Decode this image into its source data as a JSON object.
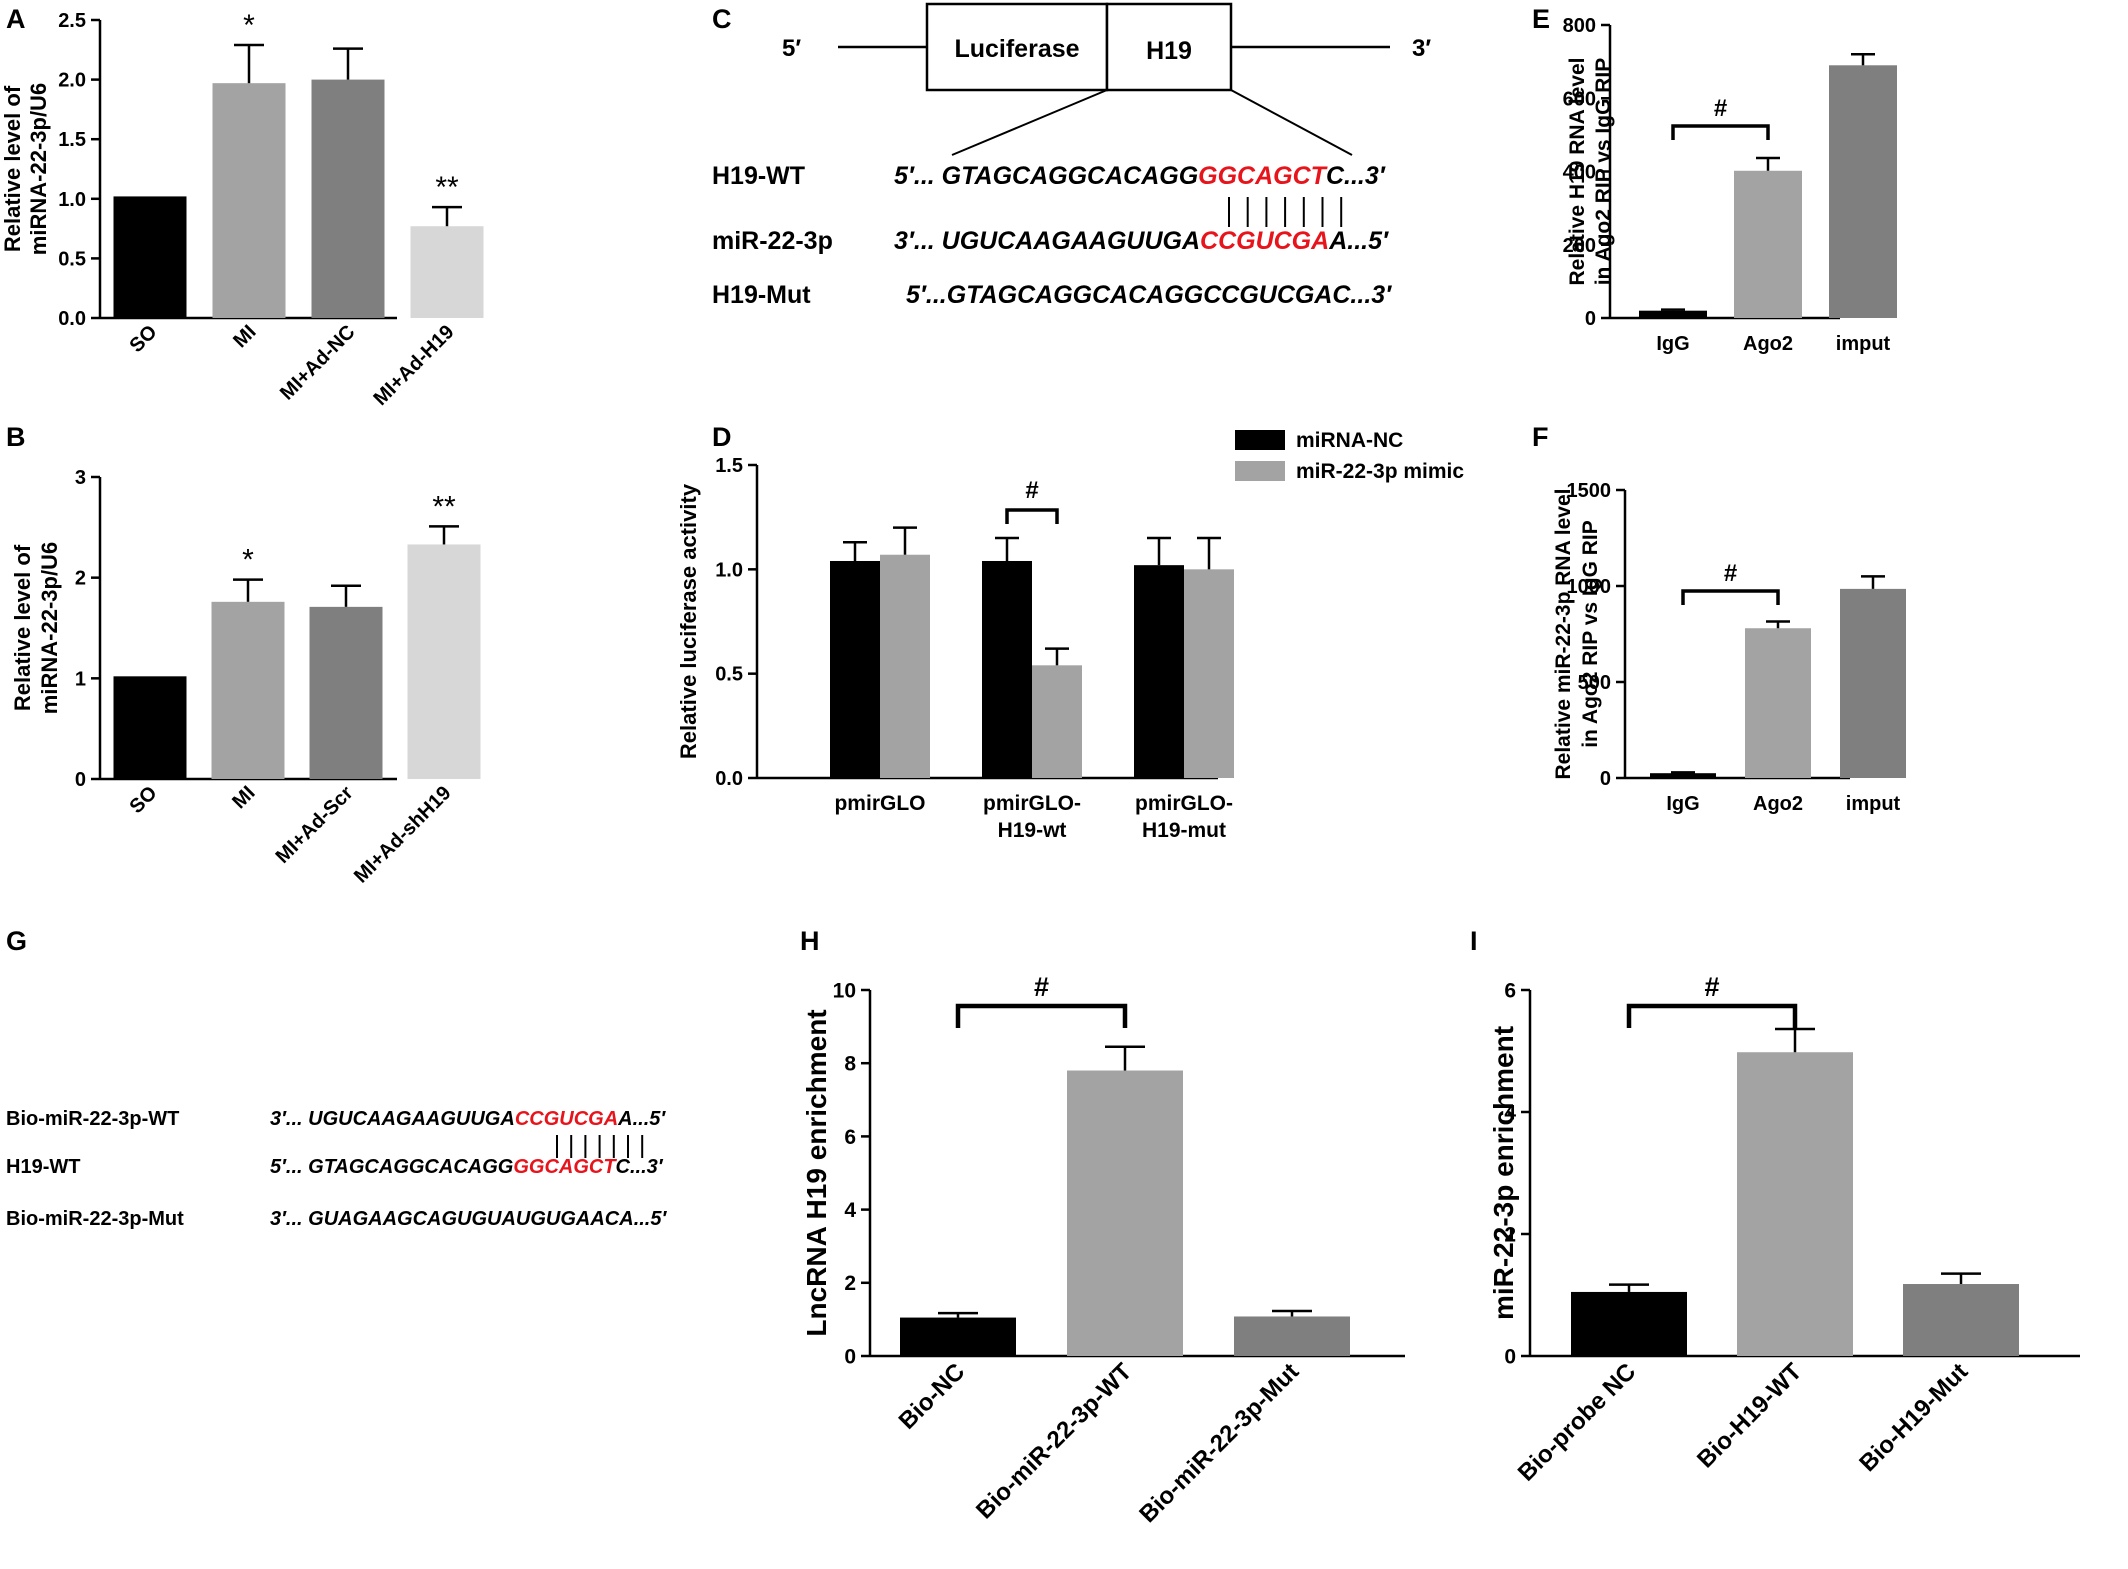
{
  "colors": {
    "black": "#000000",
    "dark_gray": "#7f7f7f",
    "mid_gray": "#a3a3a3",
    "light_gray": "#d7d7d7",
    "seed_red": "#e8141c"
  },
  "chart_data": [
    {
      "panel": "A",
      "type": "bar",
      "categories": [
        "SO",
        "MI",
        "MI+Ad-NC",
        "MI+Ad-H19"
      ],
      "values": [
        1.02,
        1.97,
        2.0,
        0.77
      ],
      "errors": [
        0,
        0.32,
        0.26,
        0.16
      ],
      "colors": [
        "black",
        "mid_gray",
        "dark_gray",
        "light_gray"
      ],
      "annotations": [
        "",
        "*",
        "",
        "**"
      ],
      "ylabel": [
        "Relative level of",
        "miRNA-22-3p/U6"
      ],
      "ylim": [
        0,
        2.5
      ],
      "yticks": [
        "0.0",
        "0.5",
        "1.0",
        "1.5",
        "2.0",
        "2.5"
      ]
    },
    {
      "panel": "B",
      "type": "bar",
      "categories": [
        "SO",
        "MI",
        "MI+Ad-Scr",
        "MI+Ad-shH19"
      ],
      "values": [
        1.02,
        1.76,
        1.71,
        2.33
      ],
      "errors": [
        0,
        0.22,
        0.21,
        0.18
      ],
      "colors": [
        "black",
        "mid_gray",
        "dark_gray",
        "light_gray"
      ],
      "annotations": [
        "",
        "*",
        "",
        "**"
      ],
      "ylabel": [
        "Relative level of",
        "miRNA-22-3p/U6"
      ],
      "ylim": [
        0,
        3
      ],
      "yticks": [
        "0",
        "1",
        "2",
        "3"
      ]
    },
    {
      "panel": "D",
      "type": "bar",
      "categories": [
        [
          "pmirGLO"
        ],
        [
          "pmirGLO-",
          "H19-wt"
        ],
        [
          "pmirGLO-",
          "H19-mut"
        ]
      ],
      "series": [
        {
          "name": "miRNA-NC",
          "color": "black",
          "values": [
            1.04,
            1.04,
            1.02
          ],
          "errors": [
            0.09,
            0.11,
            0.13
          ]
        },
        {
          "name": "miR-22-3p mimic",
          "color": "mid_gray",
          "values": [
            1.07,
            0.54,
            1.0
          ],
          "errors": [
            0.13,
            0.08,
            0.15
          ]
        }
      ],
      "significance": {
        "group": 1,
        "label": "#"
      },
      "ylabel": [
        "Relative luciferase activity"
      ],
      "ylim": [
        0,
        1.5
      ],
      "yticks": [
        "0.0",
        "0.5",
        "1.0",
        "1.5"
      ],
      "legend": "top-right"
    },
    {
      "panel": "E",
      "type": "bar",
      "categories": [
        "IgG",
        "Ago2",
        "imput"
      ],
      "values": [
        20,
        402,
        690
      ],
      "errors": [
        3,
        35,
        30
      ],
      "colors": [
        "black",
        "mid_gray",
        "dark_gray"
      ],
      "significance": {
        "from": 0,
        "to": 1,
        "label": "#"
      },
      "ylabel": [
        "Relative H19 RNA level",
        "in Ago2 RIP vs IgG RIP"
      ],
      "ylim": [
        0,
        800
      ],
      "yticks": [
        "0",
        "200",
        "400",
        "600",
        "800"
      ]
    },
    {
      "panel": "F",
      "type": "bar",
      "categories": [
        "IgG",
        "Ago2",
        "imput"
      ],
      "values": [
        25,
        780,
        985
      ],
      "errors": [
        4,
        35,
        65
      ],
      "colors": [
        "black",
        "mid_gray",
        "dark_gray"
      ],
      "significance": {
        "from": 0,
        "to": 1,
        "label": "#"
      },
      "ylabel": [
        "Relative miR-22-3p RNA level",
        "in Ago2 RIP vs IgG RIP"
      ],
      "ylim": [
        0,
        1500
      ],
      "yticks": [
        "0",
        "500",
        "1000",
        "1500"
      ]
    },
    {
      "panel": "H",
      "type": "bar",
      "categories": [
        "Bio-NC",
        "Bio-miR-22-3p-WT",
        "Bio-miR-22-3p-Mut"
      ],
      "values": [
        1.05,
        7.8,
        1.08
      ],
      "errors": [
        0.12,
        0.65,
        0.15
      ],
      "colors": [
        "black",
        "mid_gray",
        "dark_gray"
      ],
      "significance": {
        "from": 0,
        "to": 1,
        "label": "#"
      },
      "ylabel": [
        "LncRNA H19 enrichment"
      ],
      "ylim": [
        0,
        10
      ],
      "yticks": [
        "0",
        "2",
        "4",
        "6",
        "8",
        "10"
      ]
    },
    {
      "panel": "I",
      "type": "bar",
      "categories": [
        "Bio-probe NC",
        "Bio-H19-WT",
        "Bio-H19-Mut"
      ],
      "values": [
        1.05,
        4.98,
        1.18
      ],
      "errors": [
        0.12,
        0.38,
        0.17
      ],
      "colors": [
        "black",
        "mid_gray",
        "dark_gray"
      ],
      "significance": {
        "from": 0,
        "to": 1,
        "label": "#"
      },
      "ylabel": [
        "miR-22-3p enrichment"
      ],
      "ylim": [
        0,
        6
      ],
      "yticks": [
        "0",
        "2",
        "4",
        "6"
      ]
    }
  ],
  "panel_c": {
    "letter": "C",
    "five_prime": "5′",
    "three_prime": "3′",
    "box_luciferase": "Luciferase",
    "box_h19": "H19",
    "rows": [
      {
        "label": "H19-WT",
        "pre": "5′... GTAGCAGGCACAGG",
        "seed": "GGCAGCT",
        "post": "C...3′"
      },
      {
        "label": "miR-22-3p",
        "pre": "3′... UGUCAAGAAGUUGA",
        "seed": "CCGUCGA",
        "post": "A...5′"
      },
      {
        "label": "H19-Mut",
        "pre": "5′...GTAGCAGGCACAGG",
        "seed": "",
        "post": "CCGUCGAC...3′"
      }
    ]
  },
  "panel_g": {
    "letter": "G",
    "rows": [
      {
        "label": "Bio-miR-22-3p-WT",
        "pre": "3′... UGUCAAGAAGUUGA",
        "seed": "CCGUCGA",
        "post": "A...5′"
      },
      {
        "label": "H19-WT",
        "pre": "5′... GTAGCAGGCACAGG",
        "seed": "GGCAGCT",
        "post": "C...3′"
      },
      {
        "label": "Bio-miR-22-3p-Mut",
        "pre": "3′... GUAGAAGCAGUGUAUGUGAACA...5′",
        "seed": "",
        "post": ""
      }
    ]
  }
}
